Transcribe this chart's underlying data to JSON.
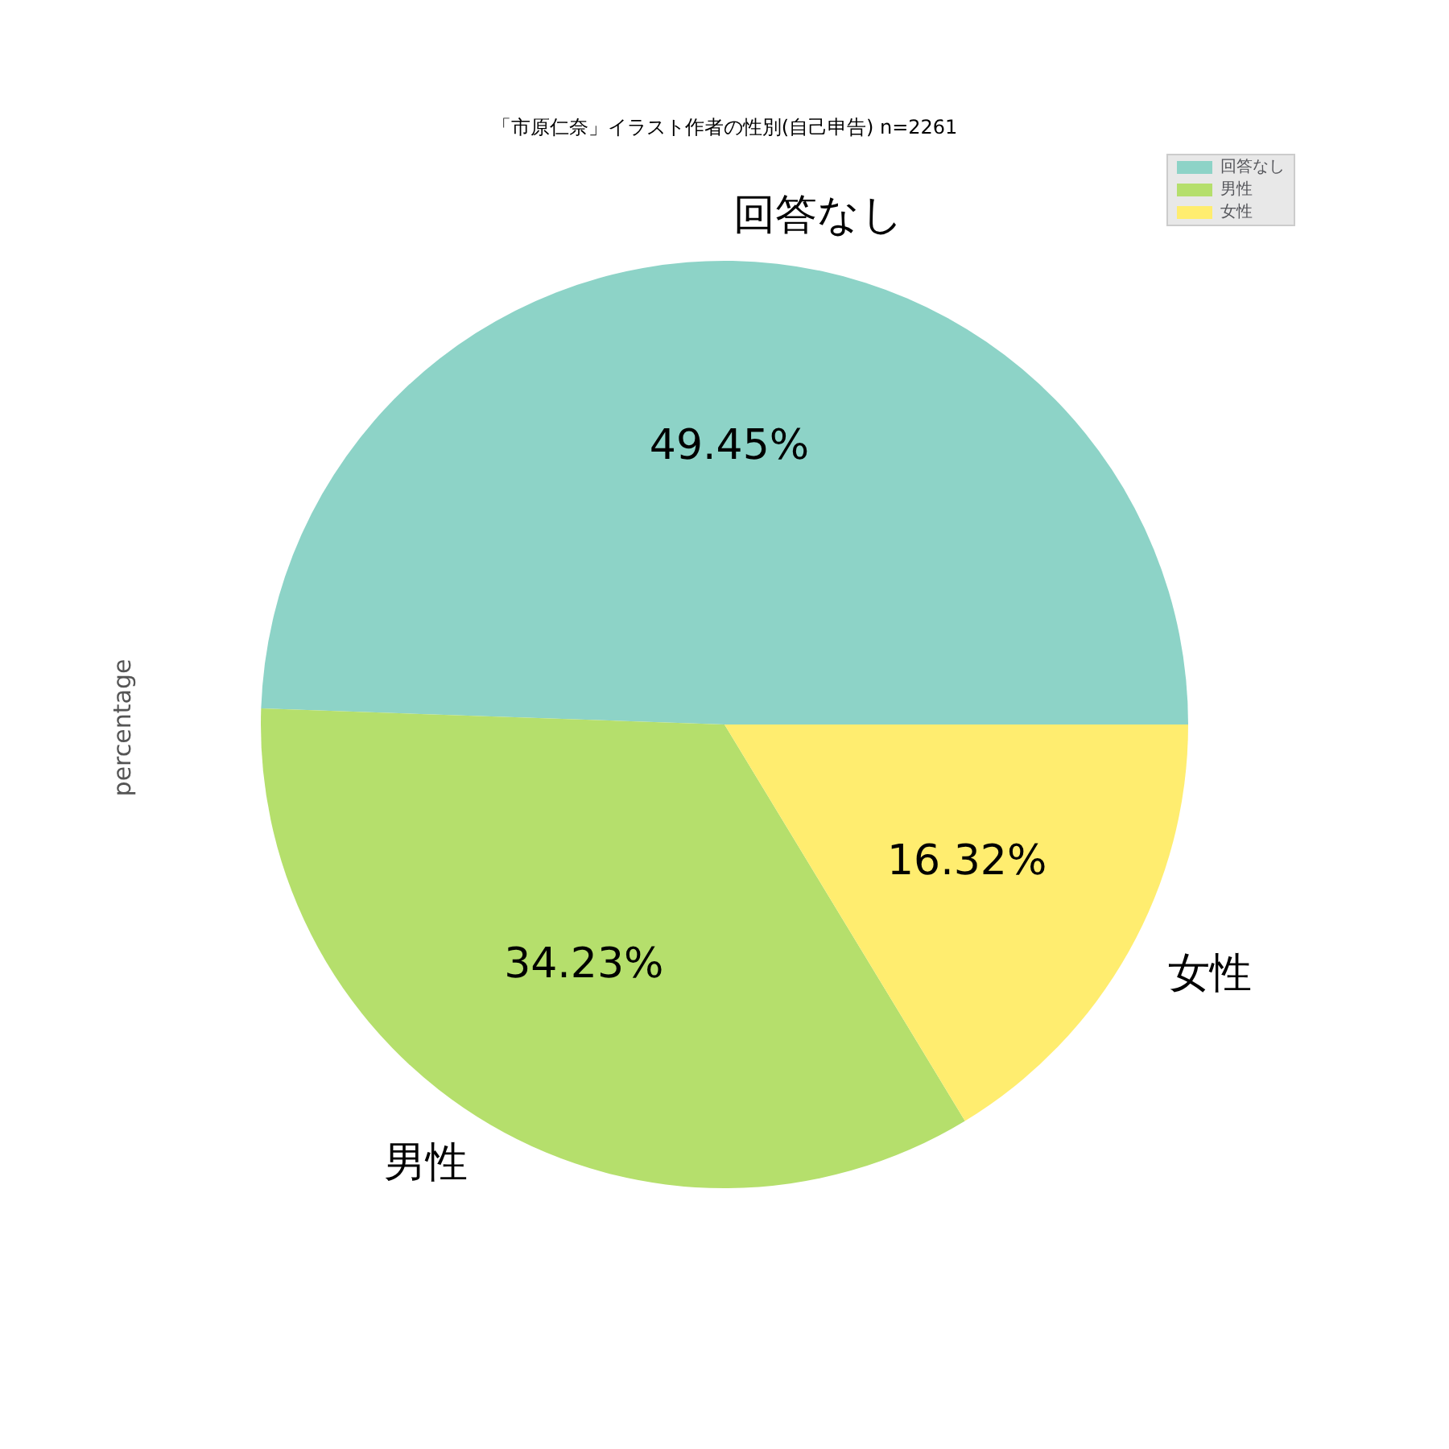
{
  "chart_data": {
    "type": "pie",
    "title": "「市原仁奈」イラスト作者の性別(自己申告) n=2261",
    "ylabel": "percentage",
    "categories": [
      "回答なし",
      "男性",
      "女性"
    ],
    "values": [
      49.45,
      34.23,
      16.32
    ],
    "colors": [
      "#8dd3c7",
      "#b5df6c",
      "#ffed6f"
    ],
    "value_labels": [
      "49.45%",
      "34.23%",
      "16.32%"
    ],
    "legend": "top right"
  }
}
